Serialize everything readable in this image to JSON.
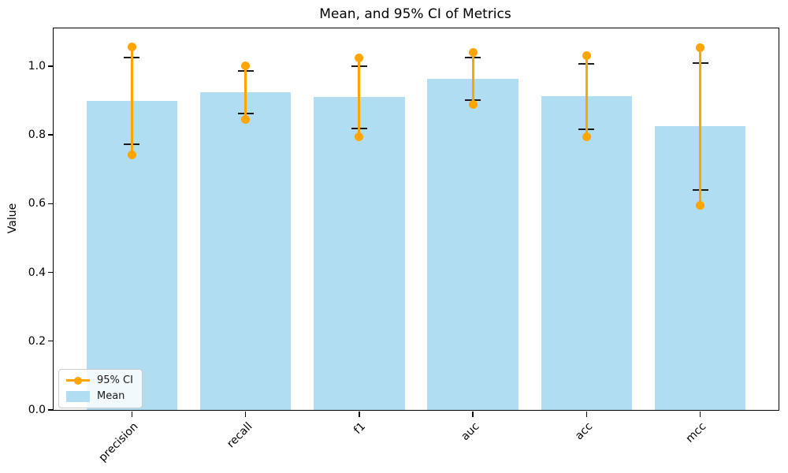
{
  "chart_data": {
    "type": "bar",
    "title": "Mean, and 95% CI of Metrics",
    "xlabel": "",
    "ylabel": "Value",
    "categories": [
      "precision",
      "recall",
      "f1",
      "auc",
      "acc",
      "mcc"
    ],
    "series": [
      {
        "name": "Mean",
        "type": "bar",
        "color": "#b0ddf1",
        "values": [
          0.899,
          0.924,
          0.911,
          0.963,
          0.913,
          0.826
        ]
      },
      {
        "name": "95% CI",
        "type": "errorbar-dots",
        "color": "#ffa500",
        "low": [
          0.743,
          0.846,
          0.794,
          0.888,
          0.794,
          0.596
        ],
        "high": [
          1.057,
          1.0,
          1.023,
          1.039,
          1.03,
          1.053
        ]
      },
      {
        "name": "caps",
        "type": "errorbar-caps",
        "color": "#1a1a1a",
        "low": [
          0.773,
          0.862,
          0.819,
          0.901,
          0.817,
          0.64
        ],
        "high": [
          1.025,
          0.986,
          1.0,
          1.025,
          1.007,
          1.009
        ]
      }
    ],
    "ylim": [
      0,
      1.11
    ],
    "ytick_values": [
      0,
      0.2,
      0.4,
      0.6,
      0.8,
      1.0
    ],
    "ytick_labels": [
      "0.0",
      "0.2",
      "0.4",
      "0.6",
      "0.8",
      "1.0"
    ],
    "xtick_rotation": 45,
    "grid": false,
    "legend_position": "lower left",
    "legend_entries": [
      "95% CI",
      "Mean"
    ],
    "bar_width_fraction": 0.8
  }
}
